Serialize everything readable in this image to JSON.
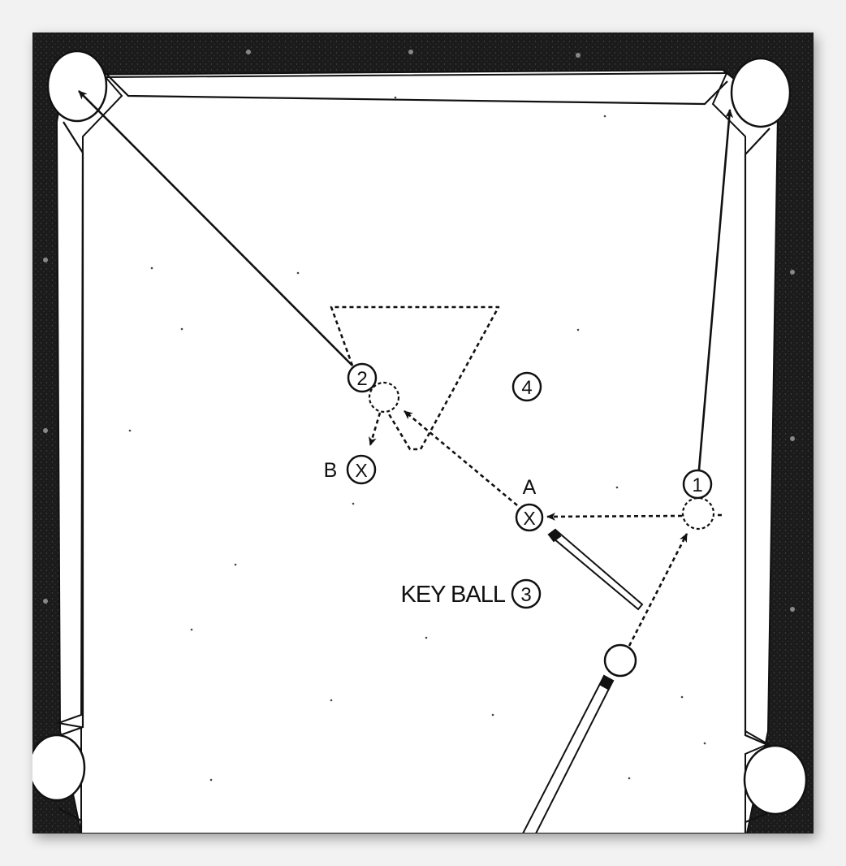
{
  "diagram": {
    "balls": {
      "ball_1": "1",
      "ball_2": "2",
      "ball_3": "3",
      "ball_4": "4"
    },
    "positions": {
      "a_label": "A",
      "a_marker": "X",
      "b_label": "B",
      "b_marker": "X"
    },
    "key_ball_label": "KEY BALL"
  },
  "colors": {
    "rail": "#1a1a1a",
    "cloth": "#ffffff",
    "ink": "#111111"
  }
}
